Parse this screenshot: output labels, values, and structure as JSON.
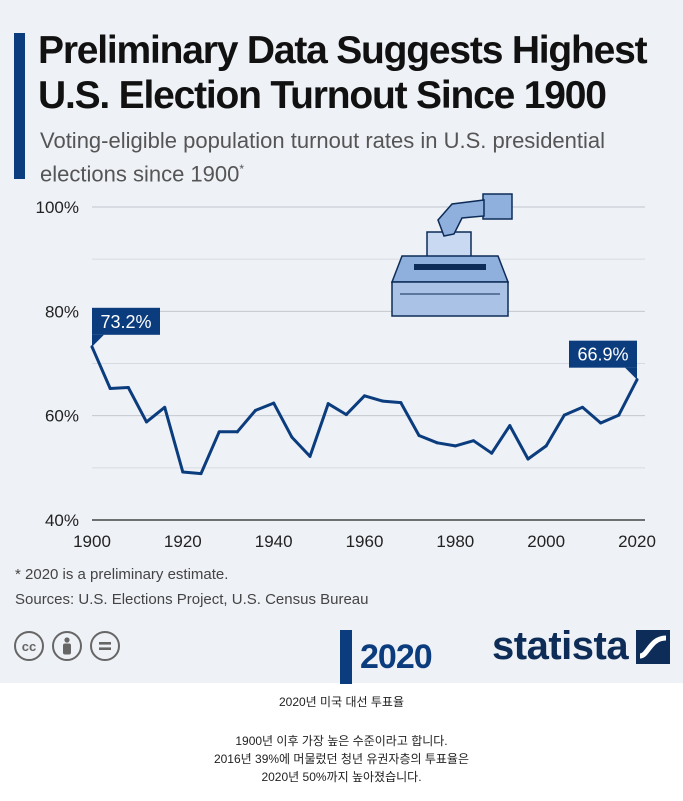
{
  "header": {
    "title_line1": "Preliminary Data Suggests Highest",
    "title_line2": "U.S. Election Turnout Since 1900",
    "subtitle_line1": "Voting-eligible population turnout rates in U.S. presidential",
    "subtitle_line2": "elections since 1900",
    "subtitle_mark": "*"
  },
  "footer": {
    "footnote": "* 2020 is a preliminary estimate.",
    "sources": "Sources: U.S. Elections Project, U.S. Census Bureau",
    "cc_icons": [
      "cc-icon",
      "person-icon",
      "equals-icon"
    ],
    "cc_label": "cc",
    "y2020_logo": "2020",
    "brand": "statista"
  },
  "caption": {
    "line1": "2020년 미국 대선 투표율",
    "line2": "1900년 이후 가장 높은 수준이라고 합니다.",
    "line3": "2016년 39%에 머물렀던 청년 유권자층의 투표율은",
    "line4": "2020년 50%까지 높아졌습니다."
  },
  "colors": {
    "line": "#0b3c7d",
    "accent": "#0b3c7d",
    "brand": "#0d2c57",
    "background": "#eef1f6"
  },
  "chart_data": {
    "type": "line",
    "title": "Preliminary Data Suggests Highest U.S. Election Turnout Since 1900",
    "xlabel": "",
    "ylabel": "",
    "xlim": [
      1900,
      2020
    ],
    "ylim": [
      40,
      100
    ],
    "x_ticks": [
      "1900",
      "1920",
      "1940",
      "1960",
      "1980",
      "2000",
      "2020"
    ],
    "y_ticks": [
      "40%",
      "60%",
      "80%",
      "100%"
    ],
    "grid": true,
    "series": [
      {
        "x": [
          1900,
          1904,
          1908,
          1912,
          1916,
          1920,
          1924,
          1928,
          1932,
          1936,
          1940,
          1944,
          1948,
          1952,
          1956,
          1960,
          1964,
          1968,
          1972,
          1976,
          1980,
          1984,
          1988,
          1992,
          1996,
          2000,
          2004,
          2008,
          2012,
          2016,
          2020
        ],
        "values": [
          73.2,
          65.2,
          65.4,
          58.8,
          61.6,
          49.2,
          48.9,
          56.9,
          56.9,
          61.0,
          62.4,
          55.9,
          52.2,
          62.3,
          60.2,
          63.8,
          62.8,
          62.5,
          56.2,
          54.8,
          54.2,
          55.2,
          52.8,
          58.1,
          51.7,
          54.2,
          60.1,
          61.6,
          58.6,
          60.1,
          66.9
        ],
        "annotations": [
          {
            "x": 1900,
            "y": 73.2,
            "label": "73.2%"
          },
          {
            "x": 2020,
            "y": 66.9,
            "label": "66.9%"
          }
        ]
      }
    ]
  }
}
